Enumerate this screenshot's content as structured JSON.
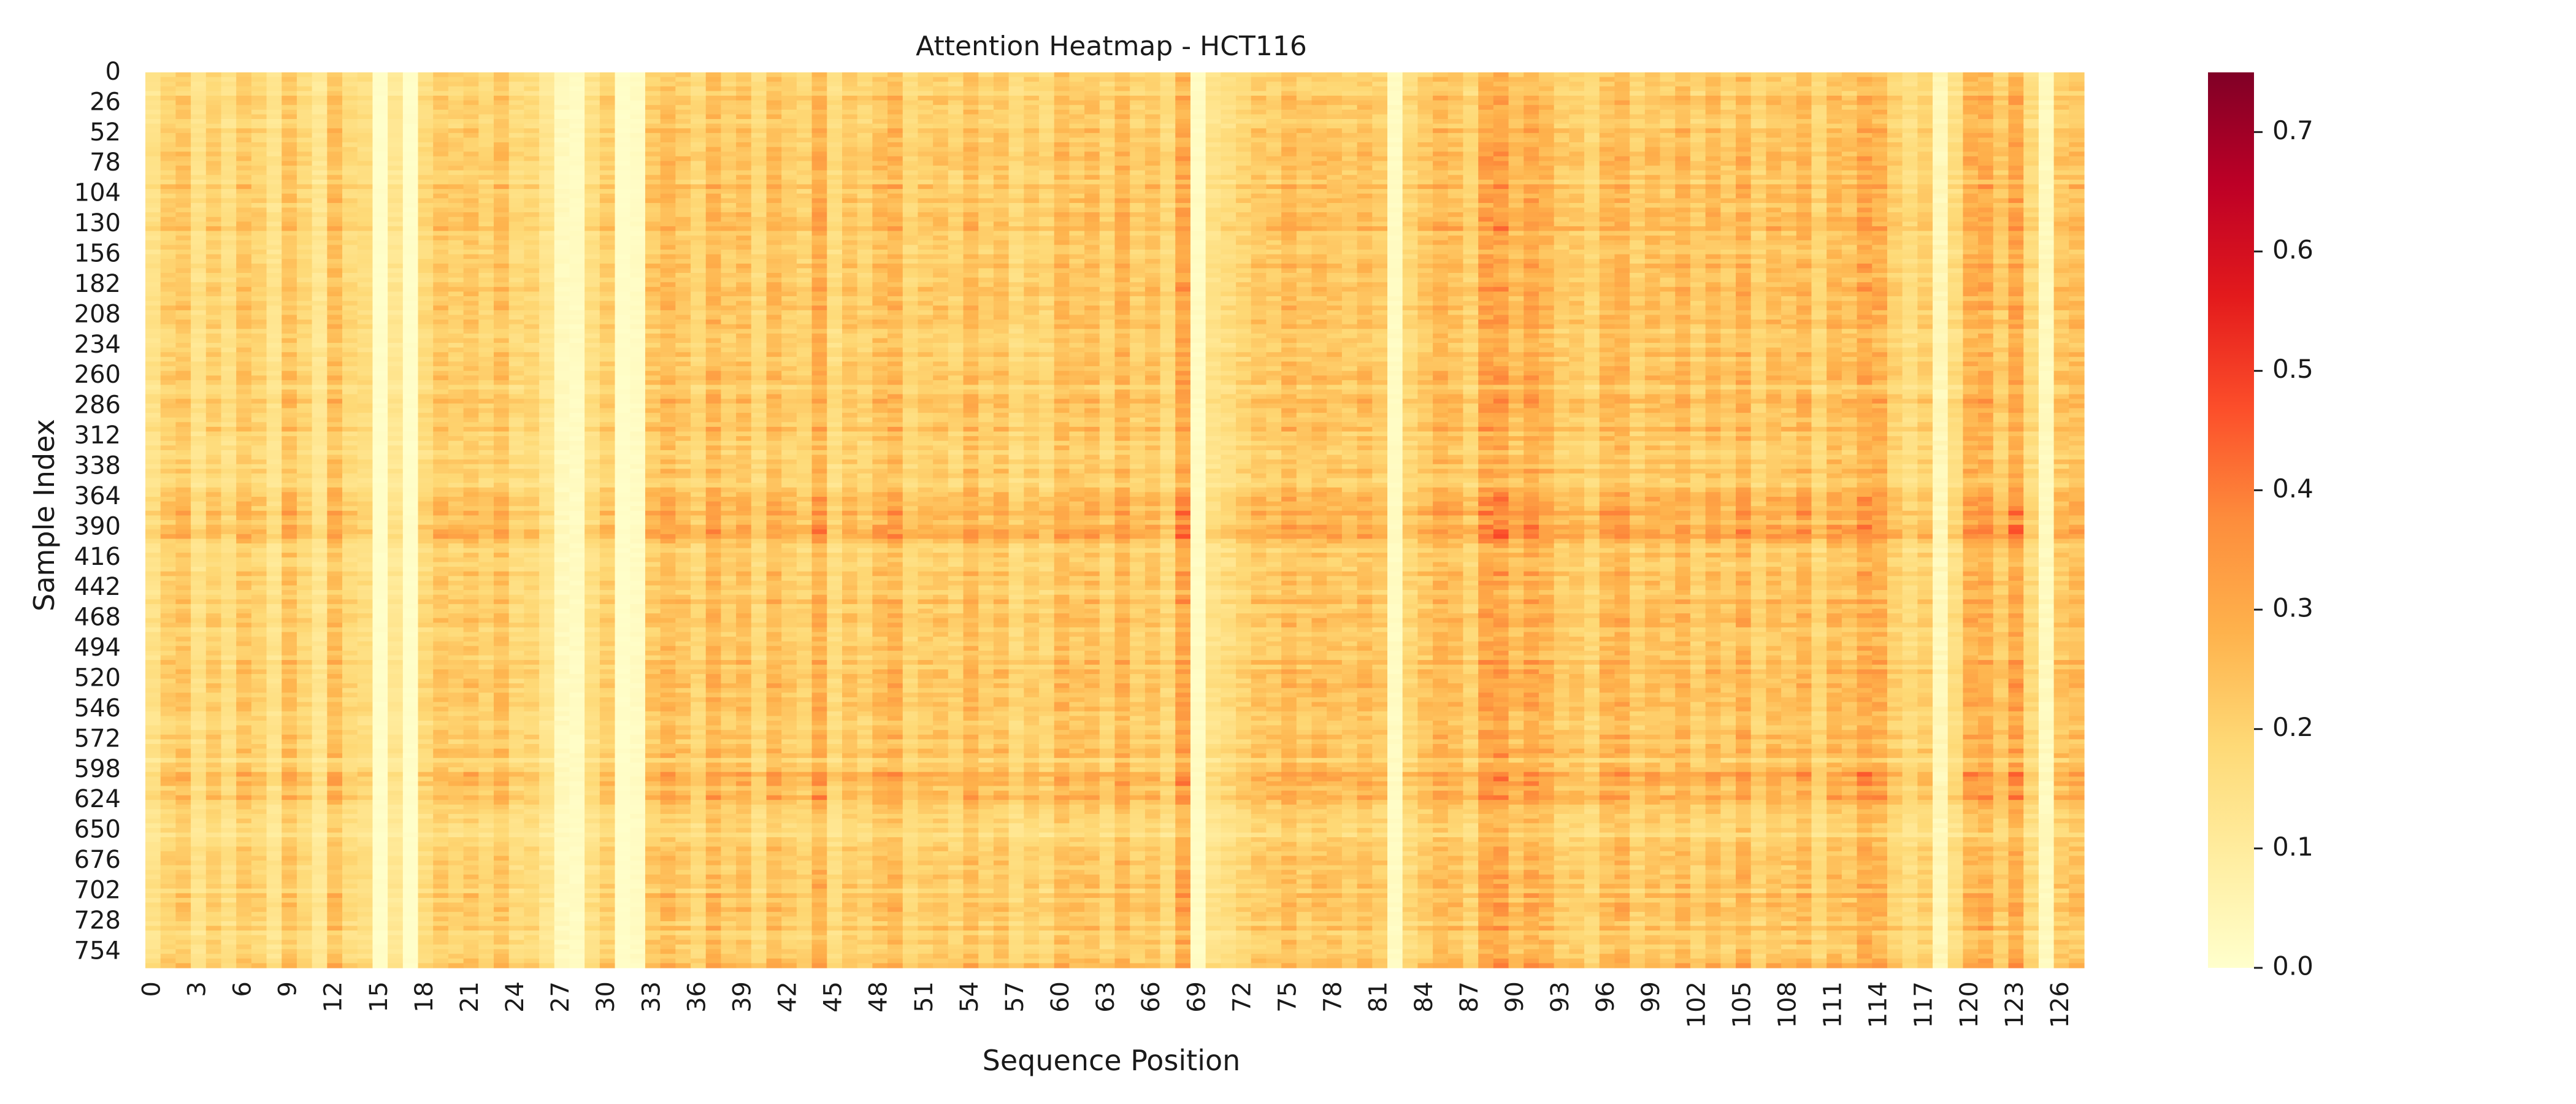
{
  "chart_data": {
    "type": "heatmap",
    "title": "Attention Heatmap - HCT116",
    "xlabel": "Sequence Position",
    "ylabel": "Sample Index",
    "n_rows": 768,
    "n_cols": 128,
    "x_tick_labels": [
      "0",
      "3",
      "6",
      "9",
      "12",
      "15",
      "18",
      "21",
      "24",
      "27",
      "30",
      "33",
      "36",
      "39",
      "42",
      "45",
      "48",
      "51",
      "54",
      "57",
      "60",
      "63",
      "66",
      "69",
      "72",
      "75",
      "78",
      "81",
      "84",
      "87",
      "90",
      "93",
      "96",
      "99",
      "102",
      "105",
      "108",
      "111",
      "114",
      "117",
      "120",
      "123",
      "126"
    ],
    "y_tick_labels": [
      "0",
      "26",
      "52",
      "78",
      "104",
      "130",
      "156",
      "182",
      "208",
      "234",
      "260",
      "286",
      "312",
      "338",
      "364",
      "390",
      "416",
      "442",
      "468",
      "494",
      "520",
      "546",
      "572",
      "598",
      "624",
      "650",
      "676",
      "702",
      "728",
      "754"
    ],
    "colorbar": {
      "min": 0.0,
      "max": 0.75,
      "ticks": [
        "0.0",
        "0.1",
        "0.2",
        "0.3",
        "0.4",
        "0.5",
        "0.6",
        "0.7"
      ],
      "colormap": [
        "#ffffcc",
        "#ffeda0",
        "#fed976",
        "#feb24c",
        "#fd8d3c",
        "#fc4e2a",
        "#e31a1c",
        "#bd0026",
        "#800026"
      ]
    },
    "column_means": [
      0.14,
      0.2,
      0.22,
      0.14,
      0.2,
      0.15,
      0.22,
      0.19,
      0.13,
      0.23,
      0.18,
      0.12,
      0.24,
      0.17,
      0.16,
      0.01,
      0.12,
      0.01,
      0.17,
      0.22,
      0.2,
      0.22,
      0.19,
      0.23,
      0.17,
      0.18,
      0.13,
      0.03,
      0.02,
      0.15,
      0.2,
      0.01,
      0.02,
      0.22,
      0.25,
      0.22,
      0.18,
      0.26,
      0.21,
      0.24,
      0.17,
      0.25,
      0.21,
      0.19,
      0.28,
      0.16,
      0.22,
      0.19,
      0.24,
      0.26,
      0.18,
      0.21,
      0.22,
      0.19,
      0.25,
      0.2,
      0.23,
      0.17,
      0.21,
      0.18,
      0.25,
      0.22,
      0.24,
      0.19,
      0.26,
      0.2,
      0.23,
      0.17,
      0.3,
      0.02,
      0.14,
      0.16,
      0.19,
      0.22,
      0.21,
      0.25,
      0.22,
      0.24,
      0.23,
      0.21,
      0.24,
      0.21,
      0.02,
      0.18,
      0.22,
      0.26,
      0.24,
      0.19,
      0.3,
      0.31,
      0.24,
      0.29,
      0.26,
      0.21,
      0.22,
      0.18,
      0.25,
      0.27,
      0.2,
      0.24,
      0.22,
      0.26,
      0.2,
      0.25,
      0.21,
      0.27,
      0.19,
      0.24,
      0.22,
      0.26,
      0.18,
      0.25,
      0.23,
      0.29,
      0.27,
      0.2,
      0.16,
      0.2,
      0.04,
      0.16,
      0.27,
      0.28,
      0.21,
      0.3,
      0.17,
      0.03,
      0.22,
      0.24
    ],
    "row_modulation": [
      {
        "rows": [
          0,
          20
        ],
        "factor": 0.8
      },
      {
        "rows": [
          120,
          140
        ],
        "factor": 1.2
      },
      {
        "rows": [
          360,
          400
        ],
        "factor": 1.25
      },
      {
        "rows": [
          600,
          625
        ],
        "factor": 1.3
      },
      {
        "rows": [
          630,
          660
        ],
        "factor": 0.85
      }
    ]
  }
}
